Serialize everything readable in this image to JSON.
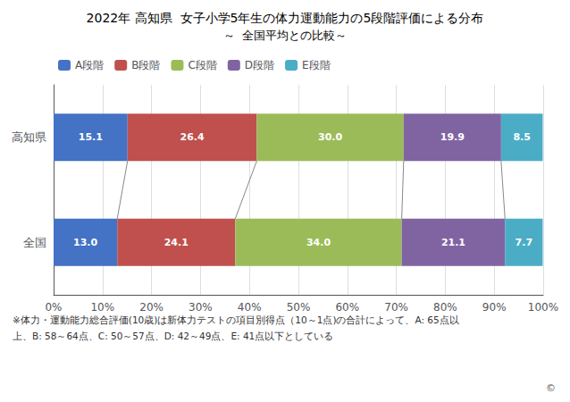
{
  "chart_data": {
    "type": "bar",
    "orientation": "horizontal",
    "stacked": true,
    "data_labels": true,
    "title": "2022年 高知県  女子小学5年生の体力運動能力の5段階評価による分布",
    "subtitle": "～  全国平均との比較～",
    "categories": [
      "高知県",
      "全国"
    ],
    "series": [
      {
        "name": "A段階",
        "color": "#4472C4",
        "values": [
          15.1,
          13.0
        ],
        "value_labels": [
          "15.1",
          "13.0"
        ]
      },
      {
        "name": "B段階",
        "color": "#C0504D",
        "values": [
          26.4,
          24.1
        ],
        "value_labels": [
          "26.4",
          "24.1"
        ]
      },
      {
        "name": "C段階",
        "color": "#9BBB59",
        "values": [
          30.0,
          34.0
        ],
        "value_labels": [
          "30.0",
          "34.0"
        ]
      },
      {
        "name": "D段階",
        "color": "#8064A2",
        "values": [
          19.9,
          21.1
        ],
        "value_labels": [
          "19.9",
          "21.1"
        ]
      },
      {
        "name": "E段階",
        "color": "#4BACC6",
        "values": [
          8.5,
          7.7
        ],
        "value_labels": [
          "8.5",
          "7.7"
        ]
      }
    ],
    "xlim": [
      0,
      100
    ],
    "xticks": [
      {
        "value": 0,
        "label": "0%"
      },
      {
        "value": 10,
        "label": "10%"
      },
      {
        "value": 20,
        "label": "20%"
      },
      {
        "value": 30,
        "label": "30%"
      },
      {
        "value": 40,
        "label": "40%"
      },
      {
        "value": 50,
        "label": "50%"
      },
      {
        "value": 60,
        "label": "60%"
      },
      {
        "value": 70,
        "label": "70%"
      },
      {
        "value": 80,
        "label": "80%"
      },
      {
        "value": 90,
        "label": "90%"
      },
      {
        "value": 100,
        "label": "100%"
      }
    ],
    "grid": true,
    "legend": "upper left",
    "annotations": [
      "※体力・運動能力総合評価(10歳)は新体力テストの項目別得点（10～1点)の合計によって、A: 65点以",
      "上、B: 58～64点、C: 50～57点、D: 42～49点、E: 41点以下としている",
      "©"
    ]
  }
}
